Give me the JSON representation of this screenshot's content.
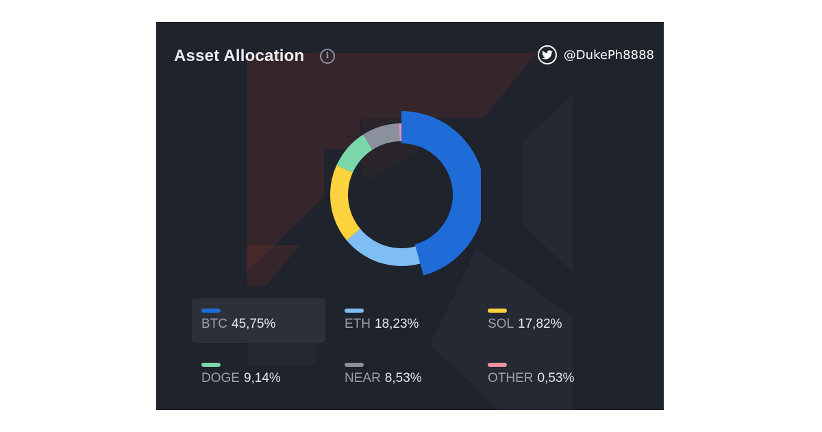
{
  "header": {
    "title": "Asset Allocation",
    "info_glyph": "i",
    "credit_handle": "@DukePh8888",
    "credit_icon": "twitter-icon"
  },
  "chart_data": {
    "type": "pie",
    "style": "donut",
    "categories": [
      "BTC",
      "ETH",
      "SOL",
      "DOGE",
      "NEAR",
      "OTHER"
    ],
    "values": [
      45.75,
      18.23,
      17.82,
      9.14,
      8.53,
      0.53
    ],
    "value_labels": [
      "45,75%",
      "18,23%",
      "17,82%",
      "9,14%",
      "8,53%",
      "0,53%"
    ],
    "colors": [
      "#1f6bd8",
      "#7fbef5",
      "#fcd33c",
      "#7ad7aa",
      "#8a919d",
      "#f291a0"
    ],
    "highlighted": "BTC",
    "legend_position": "bottom"
  }
}
